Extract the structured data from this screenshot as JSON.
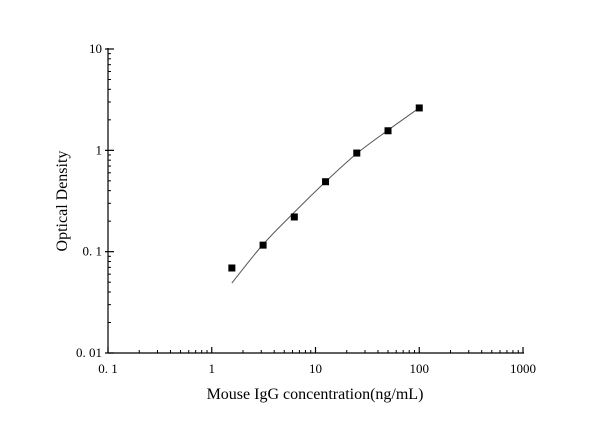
{
  "chart_data": {
    "type": "scatter",
    "title": "",
    "xlabel": "Mouse IgG concentration(ng/mL)",
    "ylabel": "Optical Density",
    "x_scale": "log",
    "y_scale": "log",
    "xlim": [
      0.1,
      1000
    ],
    "ylim": [
      0.01,
      10
    ],
    "x_ticks": [
      0.1,
      1,
      10,
      100,
      1000
    ],
    "x_tick_labels": [
      "0. 1",
      "1",
      "10",
      "100",
      "1000"
    ],
    "y_ticks": [
      0.01,
      0.1,
      1,
      10
    ],
    "y_tick_labels": [
      "0. 01",
      "0. 1",
      "1",
      "10"
    ],
    "grid": false,
    "legend": "none",
    "marker": "square",
    "marker_color": "#000000",
    "curve_color": "#555555",
    "points": {
      "x": [
        1.5625,
        3.125,
        6.25,
        12.5,
        25,
        50,
        100
      ],
      "y": [
        0.069,
        0.116,
        0.22,
        0.49,
        0.94,
        1.56,
        2.62
      ]
    },
    "fit_curve": {
      "x": [
        1.5625,
        3.125,
        6.25,
        12.5,
        25,
        50,
        100
      ],
      "y": [
        0.049,
        0.118,
        0.245,
        0.49,
        0.93,
        1.58,
        2.62
      ]
    }
  }
}
